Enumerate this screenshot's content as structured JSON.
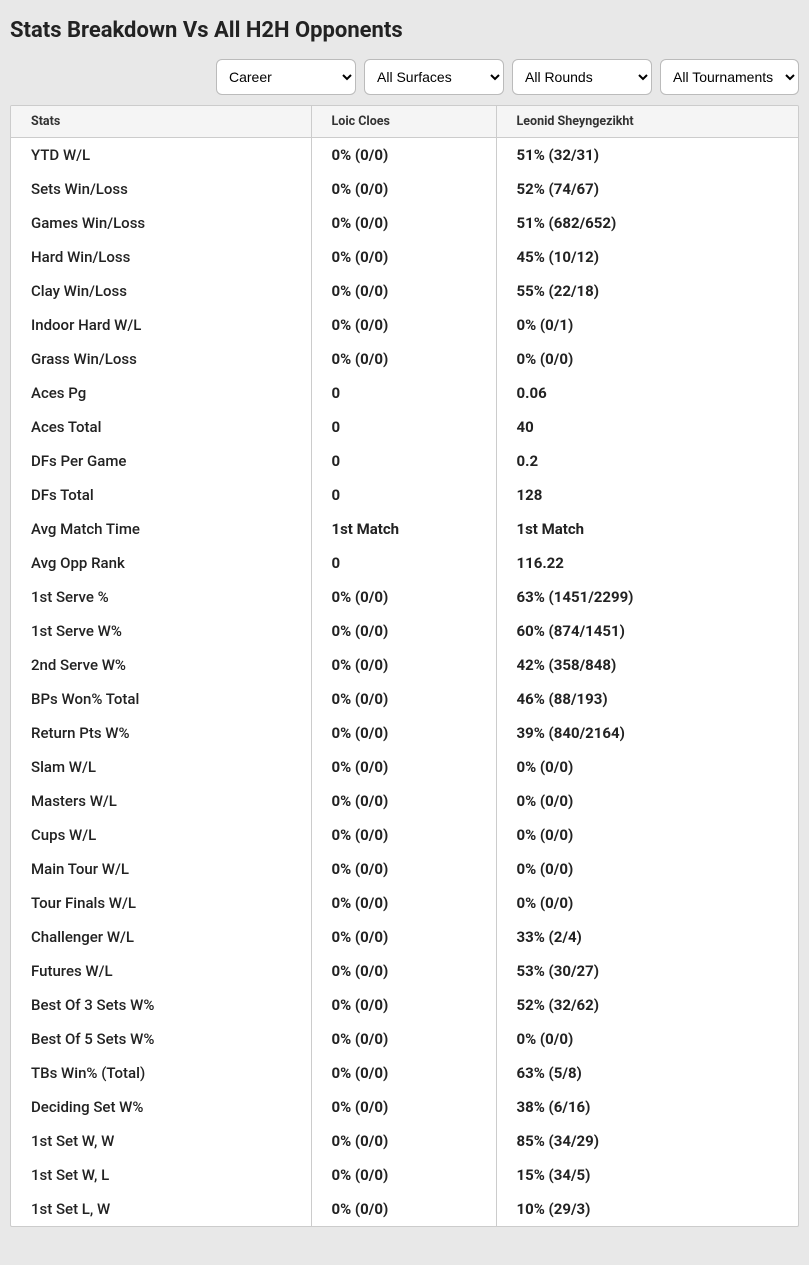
{
  "title": "Stats Breakdown Vs All H2H Opponents",
  "filters": {
    "period": {
      "selected": "Career"
    },
    "surface": {
      "selected": "All Surfaces"
    },
    "round": {
      "selected": "All Rounds"
    },
    "tournament": {
      "selected": "All Tournaments"
    }
  },
  "table": {
    "headers": {
      "stats": "Stats",
      "p1": "Loic Cloes",
      "p2": "Leonid Sheyngezikht"
    },
    "rows": [
      {
        "label": "YTD W/L",
        "p1": "0% (0/0)",
        "p2": "51% (32/31)"
      },
      {
        "label": "Sets Win/Loss",
        "p1": "0% (0/0)",
        "p2": "52% (74/67)"
      },
      {
        "label": "Games Win/Loss",
        "p1": "0% (0/0)",
        "p2": "51% (682/652)"
      },
      {
        "label": "Hard Win/Loss",
        "p1": "0% (0/0)",
        "p2": "45% (10/12)"
      },
      {
        "label": "Clay Win/Loss",
        "p1": "0% (0/0)",
        "p2": "55% (22/18)"
      },
      {
        "label": "Indoor Hard W/L",
        "p1": "0% (0/0)",
        "p2": "0% (0/1)"
      },
      {
        "label": "Grass Win/Loss",
        "p1": "0% (0/0)",
        "p2": "0% (0/0)"
      },
      {
        "label": "Aces Pg",
        "p1": "0",
        "p2": "0.06"
      },
      {
        "label": "Aces Total",
        "p1": "0",
        "p2": "40"
      },
      {
        "label": "DFs Per Game",
        "p1": "0",
        "p2": "0.2"
      },
      {
        "label": "DFs Total",
        "p1": "0",
        "p2": "128"
      },
      {
        "label": "Avg Match Time",
        "p1": "1st Match",
        "p2": "1st Match"
      },
      {
        "label": "Avg Opp Rank",
        "p1": "0",
        "p2": "116.22"
      },
      {
        "label": "1st Serve %",
        "p1": "0% (0/0)",
        "p2": "63% (1451/2299)"
      },
      {
        "label": "1st Serve W%",
        "p1": "0% (0/0)",
        "p2": "60% (874/1451)"
      },
      {
        "label": "2nd Serve W%",
        "p1": "0% (0/0)",
        "p2": "42% (358/848)"
      },
      {
        "label": "BPs Won% Total",
        "p1": "0% (0/0)",
        "p2": "46% (88/193)"
      },
      {
        "label": "Return Pts W%",
        "p1": "0% (0/0)",
        "p2": "39% (840/2164)"
      },
      {
        "label": "Slam W/L",
        "p1": "0% (0/0)",
        "p2": "0% (0/0)"
      },
      {
        "label": "Masters W/L",
        "p1": "0% (0/0)",
        "p2": "0% (0/0)"
      },
      {
        "label": "Cups W/L",
        "p1": "0% (0/0)",
        "p2": "0% (0/0)"
      },
      {
        "label": "Main Tour W/L",
        "p1": "0% (0/0)",
        "p2": "0% (0/0)"
      },
      {
        "label": "Tour Finals W/L",
        "p1": "0% (0/0)",
        "p2": "0% (0/0)"
      },
      {
        "label": "Challenger W/L",
        "p1": "0% (0/0)",
        "p2": "33% (2/4)"
      },
      {
        "label": "Futures W/L",
        "p1": "0% (0/0)",
        "p2": "53% (30/27)"
      },
      {
        "label": "Best Of 3 Sets W%",
        "p1": "0% (0/0)",
        "p2": "52% (32/62)"
      },
      {
        "label": "Best Of 5 Sets W%",
        "p1": "0% (0/0)",
        "p2": "0% (0/0)"
      },
      {
        "label": "TBs Win% (Total)",
        "p1": "0% (0/0)",
        "p2": "63% (5/8)"
      },
      {
        "label": "Deciding Set W%",
        "p1": "0% (0/0)",
        "p2": "38% (6/16)"
      },
      {
        "label": "1st Set W, W",
        "p1": "0% (0/0)",
        "p2": "85% (34/29)"
      },
      {
        "label": "1st Set W, L",
        "p1": "0% (0/0)",
        "p2": "15% (34/5)"
      },
      {
        "label": "1st Set L, W",
        "p1": "0% (0/0)",
        "p2": "10% (29/3)"
      }
    ]
  },
  "style": {
    "page_bg": "#e8e8e8",
    "table_bg": "#ffffff",
    "header_bg": "#f5f5f5",
    "border_color": "#cccccc",
    "text_color": "#222222",
    "title_fontsize": 22,
    "body_fontsize": 15,
    "header_fontsize": 12.5
  }
}
